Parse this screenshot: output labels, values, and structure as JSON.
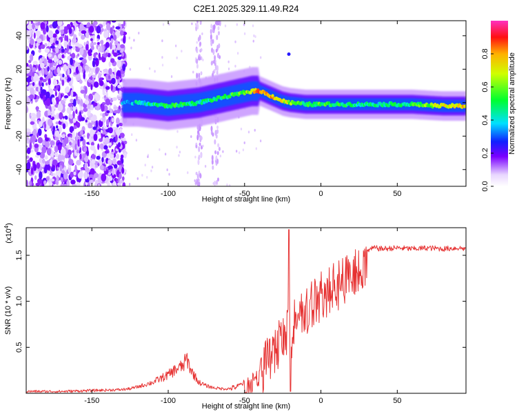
{
  "title": "C2E1.2025.329.11.49.R24",
  "chart_data": [
    {
      "type": "heatmap",
      "xlabel": "Height of straight line (km)",
      "ylabel": "Frequency (Hz)",
      "xlim": [
        -193,
        95
      ],
      "ylim": [
        -50,
        49
      ],
      "x_ticks": [
        -150,
        -100,
        -50,
        0,
        50
      ],
      "y_ticks": [
        -40,
        -20,
        0,
        20,
        40
      ],
      "colorbar": {
        "label": "Normalized spectral amplitude",
        "range": [
          0,
          1
        ],
        "ticks": [
          0.0,
          0.2,
          0.4,
          0.6,
          0.8
        ]
      },
      "ridge": {
        "x": [
          -130,
          -120,
          -110,
          -100,
          -90,
          -80,
          -70,
          -60,
          -50,
          -45,
          -40,
          -35,
          -30,
          -25,
          -20,
          -10,
          0,
          10,
          20,
          40,
          60,
          80,
          95
        ],
        "frequency": [
          0,
          0,
          -1,
          -2,
          -1,
          0,
          2,
          4,
          6,
          7,
          7,
          5,
          3,
          1,
          0,
          -1,
          -1,
          -1,
          -1,
          -1,
          -1,
          -2,
          -2
        ],
        "amplitude": [
          0.35,
          0.4,
          0.45,
          0.5,
          0.5,
          0.45,
          0.45,
          0.5,
          0.6,
          0.75,
          0.85,
          0.8,
          0.75,
          0.7,
          0.6,
          0.5,
          0.55,
          0.5,
          0.45,
          0.45,
          0.5,
          0.7,
          0.75
        ]
      },
      "annotation_peak": {
        "x": -21,
        "frequency": 29
      }
    },
    {
      "type": "line",
      "xlabel": "Height of straight line (km)",
      "ylabel": "SNR (10 * v/v)",
      "y_multiplier": "(x10",
      "y_multiplier_exp": "4",
      "y_multiplier_close": ")",
      "xlim": [
        -193,
        95
      ],
      "ylim": [
        0,
        1.8
      ],
      "x_ticks": [
        -150,
        -100,
        -50,
        0,
        50
      ],
      "y_ticks": [
        0.5,
        1.0,
        1.5
      ],
      "y_tick_labels": [
        "0.5",
        "1.0",
        "1.5"
      ],
      "color": "#e63232",
      "series": [
        {
          "name": "SNR",
          "x": [
            -193,
            -170,
            -150,
            -130,
            -125,
            -120,
            -110,
            -100,
            -95,
            -90,
            -88,
            -85,
            -80,
            -75,
            -70,
            -65,
            -60,
            -55,
            -50,
            -47,
            -45,
            -42,
            -40,
            -37,
            -35,
            -32,
            -30,
            -27,
            -25,
            -22,
            -21,
            -20,
            -18,
            -15,
            -12,
            -10,
            -8,
            -5,
            -2,
            0,
            5,
            10,
            15,
            20,
            25,
            30,
            35,
            40,
            50,
            60,
            70,
            80,
            90,
            95
          ],
          "values": [
            0.02,
            0.02,
            0.03,
            0.04,
            0.05,
            0.07,
            0.12,
            0.2,
            0.26,
            0.3,
            0.38,
            0.25,
            0.12,
            0.08,
            0.06,
            0.05,
            0.05,
            0.07,
            0.12,
            0.15,
            0.2,
            0.25,
            0.3,
            0.45,
            0.55,
            0.6,
            0.7,
            0.72,
            0.8,
            0.85,
            1.78,
            0.75,
            0.95,
            1.0,
            1.05,
            1.1,
            1.12,
            1.15,
            1.2,
            1.25,
            1.3,
            1.35,
            1.4,
            1.45,
            1.5,
            1.55,
            1.58,
            1.57,
            1.58,
            1.57,
            1.58,
            1.57,
            1.58,
            1.57
          ]
        }
      ]
    }
  ]
}
